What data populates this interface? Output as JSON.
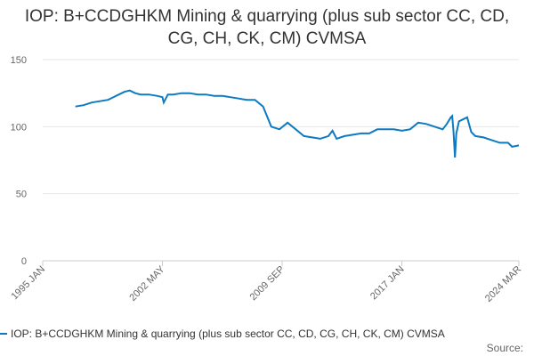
{
  "chart_data": {
    "type": "line",
    "title": "IOP: B+CCDGHKM Mining & quarrying (plus sub sector CC, CD, CG, CH, CK, CM) CVMSA",
    "source": "Source:",
    "x": [
      "1997 JAN",
      "1997 JUL",
      "1998 JAN",
      "1998 JUL",
      "1999 JAN",
      "1999 JUL",
      "2000 JAN",
      "2000 MAY",
      "2000 SEP",
      "2001 JAN",
      "2001 JUL",
      "2002 JAN",
      "2002 MAY",
      "2002 JUN",
      "2002 SEP",
      "2003 JAN",
      "2003 JUL",
      "2004 JAN",
      "2004 JUL",
      "2005 JAN",
      "2005 JUL",
      "2006 JAN",
      "2006 JUL",
      "2007 JAN",
      "2007 JUL",
      "2008 JAN",
      "2008 JUL",
      "2009 JAN",
      "2009 JUL",
      "2010 JAN",
      "2010 JUL",
      "2011 JAN",
      "2011 JUL",
      "2012 JAN",
      "2012 JUL",
      "2012 OCT",
      "2013 JAN",
      "2013 JUL",
      "2014 JAN",
      "2014 JUL",
      "2015 JAN",
      "2015 JUL",
      "2016 JAN",
      "2016 JUL",
      "2017 JAN",
      "2017 JUL",
      "2018 JAN",
      "2018 JUL",
      "2019 JAN",
      "2019 JUL",
      "2019 OCT",
      "2020 JAN",
      "2020 FEB",
      "2020 MAR",
      "2020 APR",
      "2020 MAY",
      "2020 JUL",
      "2021 JAN",
      "2021 APR",
      "2021 JUL",
      "2022 JAN",
      "2022 JUL",
      "2023 JAN",
      "2023 JUL",
      "2023 OCT",
      "2024 MAR"
    ],
    "series": [
      {
        "name": "IOP: B+CCDGHKM Mining & quarrying (plus sub sector CC, CD, CG, CH, CK, CM) CVMSA",
        "color": "#0e7ac2",
        "values": [
          115,
          116,
          118,
          119,
          120,
          123,
          126,
          127,
          125,
          124,
          124,
          123,
          122,
          118,
          124,
          124,
          125,
          125,
          124,
          124,
          123,
          123,
          122,
          121,
          120,
          120,
          115,
          100,
          98,
          103,
          98,
          93,
          92,
          91,
          93,
          97,
          91,
          93,
          94,
          95,
          95,
          98,
          98,
          98,
          97,
          98,
          103,
          102,
          100,
          98,
          102,
          107,
          108,
          96,
          77,
          95,
          104,
          107,
          96,
          93,
          92,
          90,
          88,
          88,
          85,
          86
        ]
      }
    ],
    "xlim": [
      "1995 JAN",
      "2024 MAR"
    ],
    "xticks": [
      "1995 JAN",
      "2002 MAY",
      "2009 SEP",
      "2017 JAN",
      "2024 MAR"
    ],
    "ylim": [
      0,
      150
    ],
    "yticks": [
      0,
      50,
      100,
      150
    ],
    "grid": true
  }
}
